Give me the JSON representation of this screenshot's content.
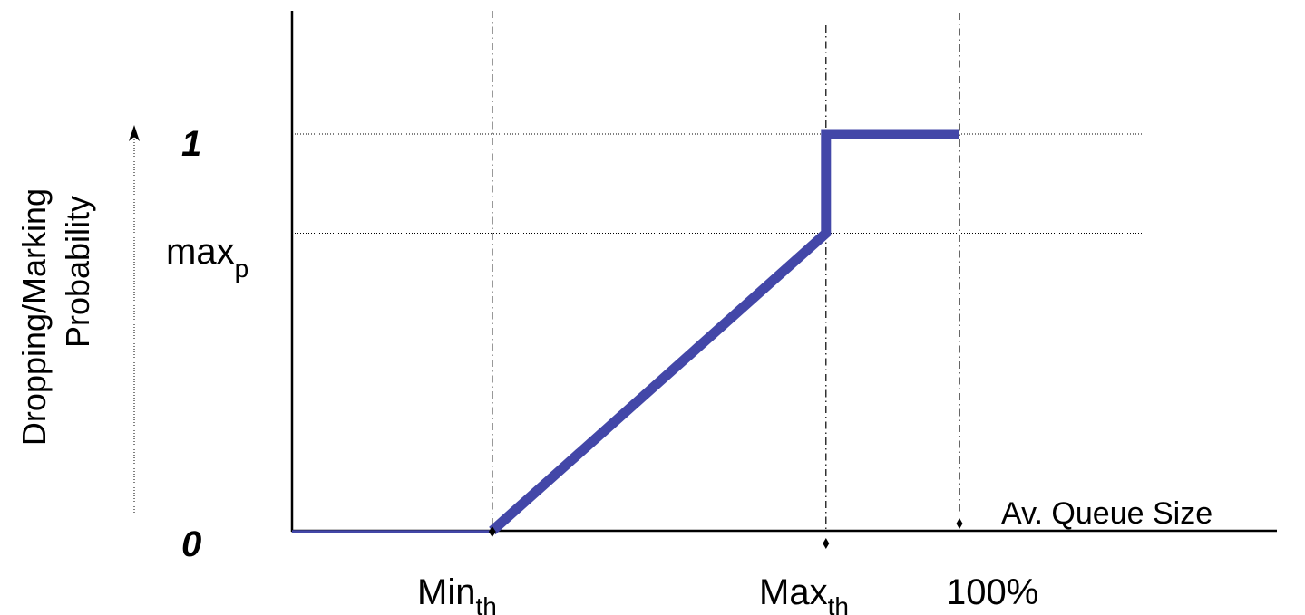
{
  "colors": {
    "curve": "#4347a8",
    "axis": "#000000",
    "guide": "#000000"
  },
  "chart_data": {
    "type": "line",
    "ylabel_line1": "Dropping/Marking",
    "ylabel_line2": "Probability",
    "xlabel": "Av. Queue Size",
    "y_ticks": {
      "zero": "0",
      "max_p_base": "max",
      "max_p_sub": "p",
      "one": "1"
    },
    "x_ticks": {
      "min_base": "Min",
      "min_sub": "th",
      "max_base": "Max",
      "max_sub": "th",
      "full": "100%"
    },
    "x_positions": {
      "min_th": 0.3,
      "max_th": 0.8,
      "full": 1.0
    },
    "y_positions": {
      "max_p": 0.75
    },
    "series": [
      {
        "points": [
          {
            "x": 0.0,
            "y": 0.0
          },
          {
            "x": 0.3,
            "y": 0.0
          },
          {
            "x": 0.8,
            "y": 0.75
          },
          {
            "x": 0.8,
            "y": 1.0
          },
          {
            "x": 1.0,
            "y": 1.0
          }
        ]
      }
    ]
  }
}
